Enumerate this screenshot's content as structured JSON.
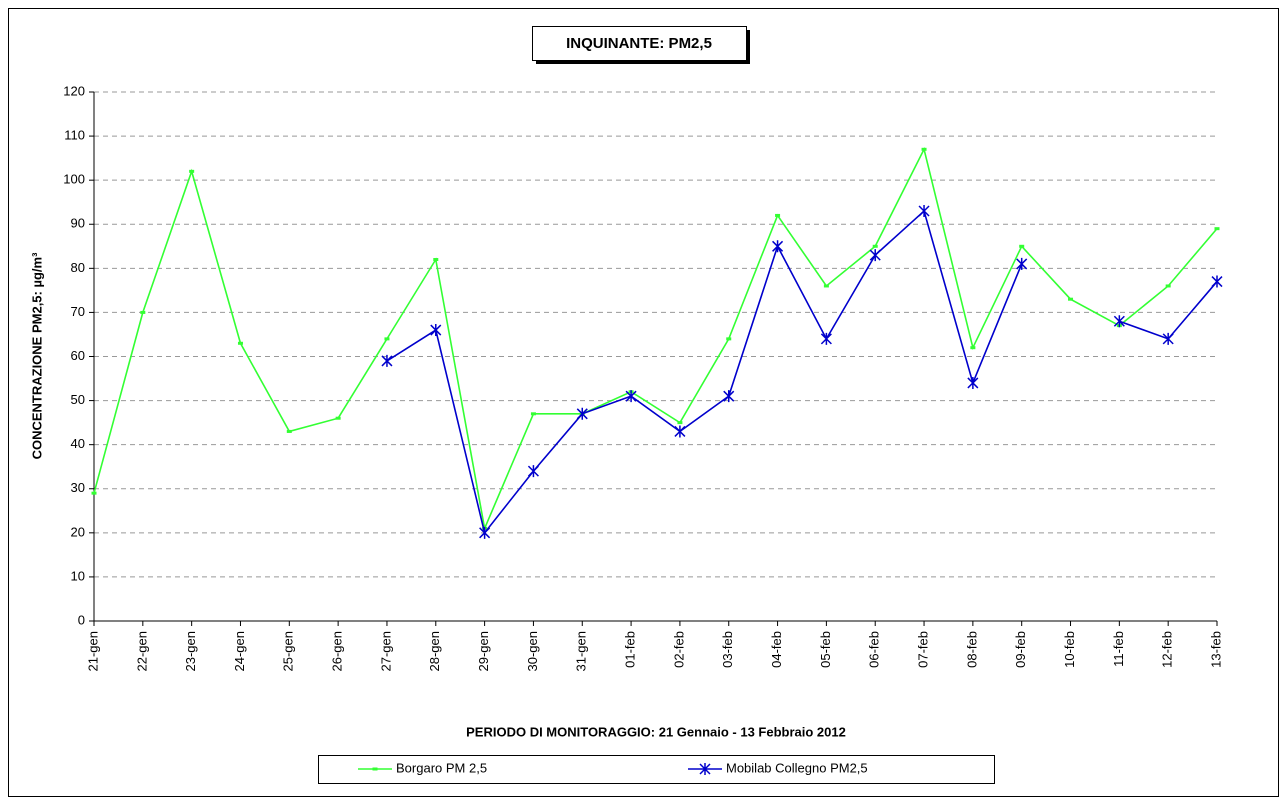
{
  "chart_data": {
    "type": "line",
    "title": "INQUINANTE: PM2,5",
    "y_label": "CONCENTRAZIONE PM2,5: µg/m³",
    "x_label": "PERIODO DI MONITORAGGIO: 21 Gennaio - 13 Febbraio 2012",
    "categories": [
      "21-gen",
      "22-gen",
      "23-gen",
      "24-gen",
      "25-gen",
      "26-gen",
      "27-gen",
      "28-gen",
      "29-gen",
      "30-gen",
      "31-gen",
      "01-feb",
      "02-feb",
      "03-feb",
      "04-feb",
      "05-feb",
      "06-feb",
      "07-feb",
      "08-feb",
      "09-feb",
      "10-feb",
      "11-feb",
      "12-feb",
      "13-feb"
    ],
    "series": [
      {
        "name": "Borgaro PM 2,5",
        "color": "#33ff33",
        "marker": "dash",
        "values": [
          29,
          70,
          102,
          63,
          43,
          46,
          64,
          82,
          21,
          47,
          47,
          52,
          45,
          64,
          92,
          76,
          85,
          107,
          62,
          85,
          73,
          67,
          76,
          89
        ]
      },
      {
        "name": "Mobilab Collegno PM2,5",
        "color": "#0000cc",
        "marker": "asterisk",
        "values": [
          null,
          null,
          null,
          null,
          null,
          null,
          59,
          66,
          20,
          34,
          47,
          51,
          43,
          51,
          85,
          64,
          83,
          93,
          54,
          81,
          null,
          68,
          64,
          77
        ]
      }
    ],
    "ylim": [
      0,
      120
    ],
    "yticks": [
      0,
      10,
      20,
      30,
      40,
      50,
      60,
      70,
      80,
      90,
      100,
      110,
      120
    ],
    "grid": true
  }
}
